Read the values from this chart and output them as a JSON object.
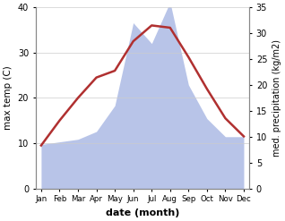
{
  "months": [
    "Jan",
    "Feb",
    "Mar",
    "Apr",
    "May",
    "Jun",
    "Jul",
    "Aug",
    "Sep",
    "Oct",
    "Nov",
    "Dec"
  ],
  "month_indices": [
    0,
    1,
    2,
    3,
    4,
    5,
    6,
    7,
    8,
    9,
    10,
    11
  ],
  "temperature": [
    9.5,
    15.0,
    20.0,
    24.5,
    26.0,
    32.5,
    36.0,
    35.5,
    29.0,
    22.0,
    15.5,
    11.5
  ],
  "precipitation": [
    8.5,
    9.0,
    9.5,
    11.0,
    16.0,
    32.0,
    28.0,
    36.0,
    20.0,
    13.5,
    10.0,
    10.0
  ],
  "temp_color": "#b03030",
  "precip_fill_color": "#b8c4e8",
  "precip_fill_alpha": 1.0,
  "xlabel": "date (month)",
  "ylabel_left": "max temp (C)",
  "ylabel_right": "med. precipitation (kg/m2)",
  "ylim_left": [
    0,
    40
  ],
  "ylim_right": [
    0,
    35
  ],
  "yticks_left": [
    0,
    10,
    20,
    30,
    40
  ],
  "yticks_right": [
    0,
    5,
    10,
    15,
    20,
    25,
    30,
    35
  ],
  "background_color": "#ffffff",
  "fig_width": 3.18,
  "fig_height": 2.47,
  "dpi": 100
}
